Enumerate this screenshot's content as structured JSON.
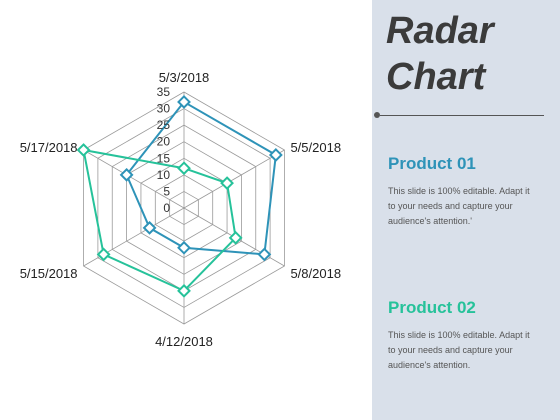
{
  "colors": {
    "product_01": "#2e93b8",
    "product_02": "#26c29a",
    "panel_bg": "#d9e0ea",
    "grid": "#9a9a9a"
  },
  "panel": {
    "title_line1": "Radar",
    "title_line2": "Chart",
    "products": [
      {
        "name": "Product 01",
        "description": "This slide is 100% editable. Adapt it to your needs and capture your audience's attention.'"
      },
      {
        "name": "Product 02",
        "description": "This slide is 100% editable. Adapt it to your needs and capture your audience's attention."
      }
    ]
  },
  "chart_data": {
    "type": "radar",
    "categories": [
      "5/3/2018",
      "5/5/2018",
      "5/8/2018",
      "4/12/2018",
      "5/15/2018",
      "5/17/2018"
    ],
    "series": [
      {
        "name": "Product 01",
        "values": [
          32,
          32,
          28,
          12,
          12,
          20
        ]
      },
      {
        "name": "Product 02",
        "values": [
          12,
          15,
          18,
          25,
          28,
          35
        ]
      }
    ],
    "r_ticks": [
      0,
      5,
      10,
      15,
      20,
      25,
      30,
      35
    ],
    "rlim": [
      0,
      35
    ],
    "grid": true,
    "marker": "diamond"
  }
}
